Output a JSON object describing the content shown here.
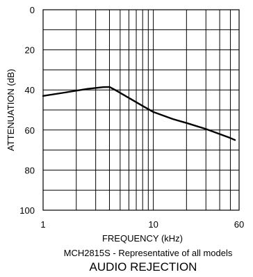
{
  "chart_data": {
    "type": "line",
    "title": "AUDIO REJECTION",
    "subtitle": "MCH2815S - Representative of all models",
    "xlabel": "FREQUENCY (kHz)",
    "ylabel": "ATTENUATION (dB)",
    "x_scale": "log",
    "xlim": [
      1,
      60
    ],
    "ylim": [
      0,
      100
    ],
    "y_inverted": true,
    "grid": true,
    "x_ticks": [
      {
        "value": 1,
        "label": "1"
      },
      {
        "value": 10,
        "label": "10"
      },
      {
        "value": 60,
        "label": "60"
      }
    ],
    "y_ticks": [
      {
        "value": 0,
        "label": "0"
      },
      {
        "value": 20,
        "label": "20"
      },
      {
        "value": 40,
        "label": "40"
      },
      {
        "value": 60,
        "label": "60"
      },
      {
        "value": 80,
        "label": "80"
      },
      {
        "value": 100,
        "label": "100"
      }
    ],
    "x_gridlines": [
      2,
      3,
      4,
      5,
      6,
      7,
      8,
      9,
      10,
      20,
      30,
      40,
      50
    ],
    "y_gridlines": [
      10,
      20,
      30,
      40,
      50,
      60,
      70,
      80,
      90
    ],
    "series": [
      {
        "color": "#000000",
        "points": [
          [
            1,
            43
          ],
          [
            1.5,
            41.5
          ],
          [
            2.5,
            39.5
          ],
          [
            3.5,
            38.6
          ],
          [
            4.0,
            38.5
          ],
          [
            4.5,
            40
          ],
          [
            6,
            44
          ],
          [
            8,
            48
          ],
          [
            10,
            51
          ],
          [
            15,
            54.5
          ],
          [
            20,
            56.5
          ],
          [
            30,
            59.5
          ],
          [
            40,
            62
          ],
          [
            50,
            64
          ],
          [
            55,
            65
          ]
        ]
      }
    ]
  }
}
